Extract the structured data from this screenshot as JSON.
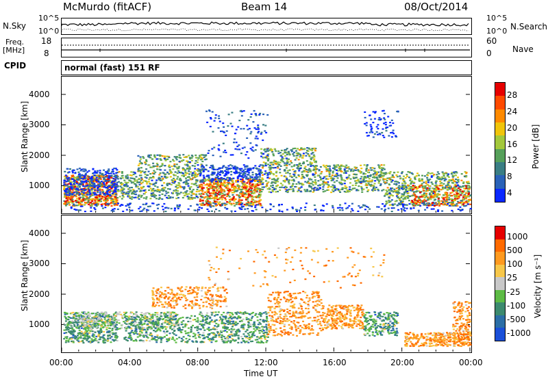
{
  "header": {
    "station": "McMurdo (fitACF)",
    "beam": "Beam 14",
    "date": "08/Oct/2014"
  },
  "left_labels": {
    "nsky": "N.Sky",
    "freq": "Freq.",
    "mhz": "[MHz]",
    "cpid": "CPID",
    "freq_top": "18",
    "freq_bot": "8"
  },
  "right_labels": {
    "nsearch": "N.Search",
    "nave": "Nave",
    "nave_top": "60",
    "nave_bot": "0"
  },
  "noise_ticks": {
    "top": "10^5",
    "bottom": "10^0"
  },
  "cpid_text": "normal (fast) 151 RF",
  "x_axis": {
    "label": "Time UT",
    "ticks": [
      "00:00",
      "04:00",
      "08:00",
      "12:00",
      "16:00",
      "20:00",
      "00:00"
    ]
  },
  "chart_data": [
    {
      "type": "heatmap",
      "name": "power",
      "ylabel": "Slant Range [km]",
      "y_ticks": [
        "4000",
        "3000",
        "2000",
        "1000"
      ],
      "ylim": [
        180,
        4500
      ],
      "xlim": [
        "00:00",
        "24:00"
      ],
      "colorbar_label": "Power [dB]",
      "colorbar_ticks": [
        "28",
        "24",
        "20",
        "16",
        "12",
        "8",
        "4"
      ],
      "colors": [
        "#0a28ff",
        "#2a62b8",
        "#3a7e84",
        "#56a05a",
        "#a3c83c",
        "#f0c40a",
        "#ff8a00",
        "#ff4a00",
        "#e60000"
      ]
    },
    {
      "type": "heatmap",
      "name": "velocity",
      "ylabel": "Slant Range [km]",
      "y_ticks": [
        "4000",
        "3000",
        "2000",
        "1000"
      ],
      "ylim": [
        180,
        4500
      ],
      "xlim": [
        "00:00",
        "24:00"
      ],
      "colorbar_label": "Velocity [m s⁻¹]",
      "colorbar_ticks": [
        "1000",
        "500",
        "100",
        "25",
        "-25",
        "-100",
        "-500",
        "-1000"
      ],
      "colors": [
        "#1a4fd8",
        "#2b6ea6",
        "#3c8a6e",
        "#5dbb45",
        "#c8c8c8",
        "#f7c74a",
        "#ff9a20",
        "#ff6a00",
        "#e60000"
      ]
    }
  ]
}
